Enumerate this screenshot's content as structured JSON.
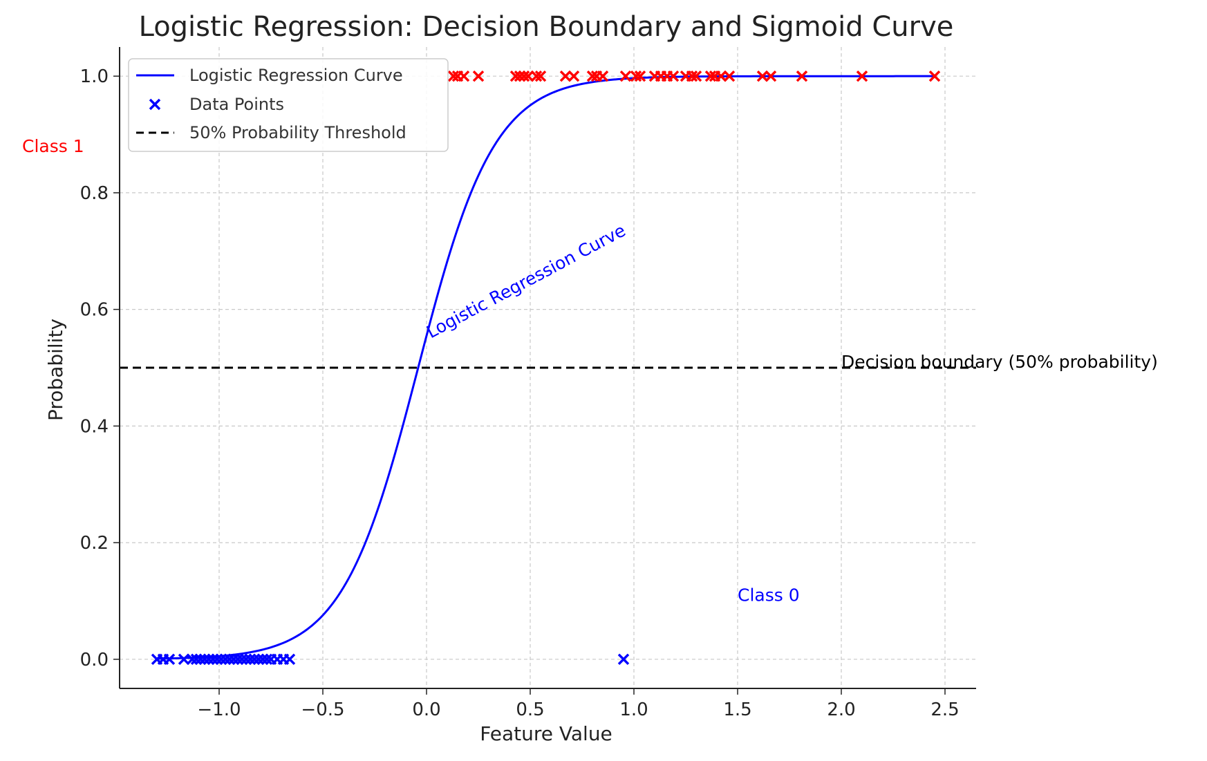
{
  "chart_data": {
    "type": "scatter",
    "title": "Logistic Regression: Decision Boundary and Sigmoid Curve",
    "xlabel": "Feature Value",
    "ylabel": "Probability",
    "xlim": [
      -1.48,
      2.65
    ],
    "ylim": [
      -0.05,
      1.05
    ],
    "x_ticks": [
      -1.0,
      -0.5,
      0.0,
      0.5,
      1.0,
      1.5,
      2.0,
      2.5
    ],
    "x_tick_labels": [
      "−1.0",
      "−0.5",
      "0.0",
      "0.5",
      "1.0",
      "1.5",
      "2.0",
      "2.5"
    ],
    "y_ticks": [
      0.0,
      0.2,
      0.4,
      0.6,
      0.8,
      1.0
    ],
    "y_tick_labels": [
      "0.0",
      "0.2",
      "0.4",
      "0.6",
      "0.8",
      "1.0"
    ],
    "grid": true,
    "legend_position": "top-left",
    "curve": {
      "name": "Logistic Regression Curve",
      "color": "#0000ff",
      "x_range": [
        -1.3,
        2.45
      ],
      "model": "sigmoid",
      "coef": 5.45,
      "intercept": 0.22
    },
    "threshold": {
      "name": "50% Probability Threshold",
      "y": 0.5,
      "color": "#000000"
    },
    "points_series_name": "Data Points",
    "class1_points": {
      "color": "#ff0000",
      "y": 1,
      "x": [
        0.13,
        0.15,
        0.18,
        0.25,
        0.43,
        0.45,
        0.47,
        0.49,
        0.53,
        0.55,
        0.67,
        0.71,
        0.8,
        0.82,
        0.85,
        0.96,
        1.01,
        1.03,
        1.1,
        1.13,
        1.16,
        1.19,
        1.25,
        1.28,
        1.3,
        1.37,
        1.39,
        1.42,
        1.46,
        1.62,
        1.66,
        1.81,
        2.1,
        2.45
      ]
    },
    "class0_points": {
      "color": "#0000ff",
      "y": 0,
      "x": [
        -1.3,
        -1.27,
        -1.24,
        -1.17,
        -1.13,
        -1.11,
        -1.09,
        -1.07,
        -1.05,
        -1.03,
        -1.01,
        -0.99,
        -0.97,
        -0.95,
        -0.93,
        -0.91,
        -0.89,
        -0.87,
        -0.85,
        -0.83,
        -0.81,
        -0.79,
        -0.77,
        -0.75,
        -0.72,
        -0.69,
        -0.66,
        0.95
      ]
    },
    "annotations": [
      {
        "text": "Class 1",
        "x": -1.95,
        "y": 0.87,
        "color": "#ff0000",
        "rotate": 0
      },
      {
        "text": "Class 0",
        "x": 1.5,
        "y": 0.1,
        "color": "#0000ff",
        "rotate": 0
      },
      {
        "text": "Logistic Regression Curve",
        "x": 0.02,
        "y": 0.55,
        "color": "#0000ff",
        "rotate": -28
      },
      {
        "text": "Decision boundary (50% probability)",
        "x": 2.0,
        "y": 0.5,
        "color": "#000000",
        "rotate": 0
      }
    ]
  }
}
